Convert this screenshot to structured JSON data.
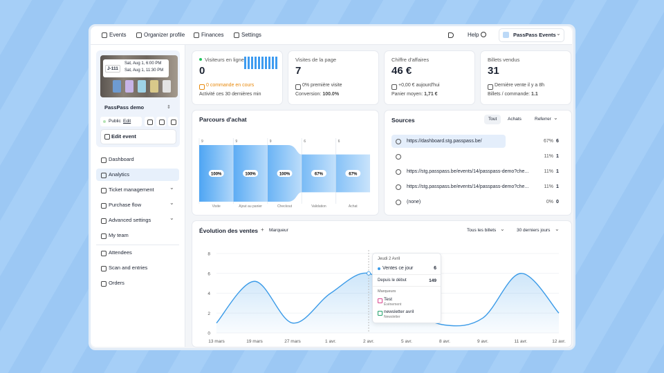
{
  "nav": {
    "items": [
      "Events",
      "Organizer profile",
      "Finances",
      "Settings"
    ],
    "help": "Help",
    "account": "PassPass Events"
  },
  "sidebar": {
    "ticket": {
      "code": "J-111",
      "dates": [
        "Sat, Aug 1, 6:00 PM",
        "Sat, Aug 1, 11:30 PM"
      ]
    },
    "event_name": "PassPass demo",
    "status": "Public",
    "edit": "Edit",
    "edit_event": "Edit event",
    "menu": [
      [
        {
          "label": "Dashboard"
        },
        {
          "label": "Analytics",
          "active": true
        },
        {
          "label": "Ticket management",
          "expandable": true
        },
        {
          "label": "Purchase flow",
          "expandable": true
        },
        {
          "label": "Advanced settings",
          "expandable": true
        },
        {
          "label": "My team"
        }
      ],
      [
        {
          "label": "Attendees"
        },
        {
          "label": "Scan and entries"
        },
        {
          "label": "Orders"
        }
      ]
    ]
  },
  "kpis": [
    {
      "title": "Visiteurs en ligne",
      "value": "0",
      "note": "0 commande en cours",
      "footer_label": "Activité ces 30 dernières min"
    },
    {
      "title": "Visites de la page",
      "value": "7",
      "note": "0% première visite",
      "footer_label": "Conversion:",
      "footer_value": "100.0%"
    },
    {
      "title": "Chiffre d'affaires",
      "value": "46 €",
      "note": "+0,00 € aujourd'hui",
      "footer_label": "Panier moyen:",
      "footer_value": "1,71 €"
    },
    {
      "title": "Billets vendus",
      "value": "31",
      "note": "Dernière vente il y a 8h",
      "footer_label": "Billets / commande:",
      "footer_value": "1.1"
    }
  ],
  "funnel": {
    "type": "funnel",
    "title": "Parcours d'achat",
    "categories": [
      "Visite",
      "Ajout au panier",
      "Checkout",
      "Validation",
      "Achat"
    ],
    "values": [
      9,
      9,
      9,
      6,
      6
    ],
    "rate_labels": [
      "100%",
      "100%",
      "100%",
      "67%",
      "67%"
    ],
    "color": "#4ea5f3"
  },
  "sources": {
    "title": "Sources",
    "tabs": [
      "Tout",
      "Achats",
      "Referrer"
    ],
    "rows": [
      {
        "url": "https://dashboard.stg.passpass.be/",
        "share": "67%",
        "count": 6
      },
      {
        "url": null,
        "share": "11%",
        "count": 1
      },
      {
        "url": "https://stg.passpass.be/events/14/passpass-demo?che...",
        "share": "11%",
        "count": 1
      },
      {
        "url": "https://stg.passpass.be/events/14/passpass-demo?che...",
        "share": "11%",
        "count": 1
      },
      {
        "url": "(none)",
        "share": "0%",
        "count": 0
      }
    ]
  },
  "sales_chart": {
    "type": "line",
    "title": "Évolution des ventes",
    "marker_button": "Marqueur",
    "filters": [
      "Tous les billets",
      "30 derniers jours"
    ],
    "categories": [
      "13 mars",
      "19 mars",
      "27 mars",
      "1 avr.",
      "2 avr.",
      "5 avr.",
      "8 avr.",
      "9 avr.",
      "11 avr.",
      "12 avr."
    ],
    "values": [
      1,
      5.2,
      1,
      4,
      6,
      2.5,
      0.8,
      1.5,
      6,
      2
    ],
    "color": "#3b9be8",
    "ylim": [
      0,
      8
    ],
    "yticks": [
      0,
      2,
      4,
      6,
      8
    ],
    "tooltip": {
      "date": "Jeudi 2 Avril",
      "series_label": "Ventes ce jour",
      "series_value": 6,
      "total_label": "Depuis le début",
      "total_value": 149,
      "markers_title": "Marqueurs",
      "markers": [
        {
          "name": "Test",
          "kind": "Événement"
        },
        {
          "name": "newsletter avril",
          "kind": "Newsletter"
        }
      ]
    }
  }
}
